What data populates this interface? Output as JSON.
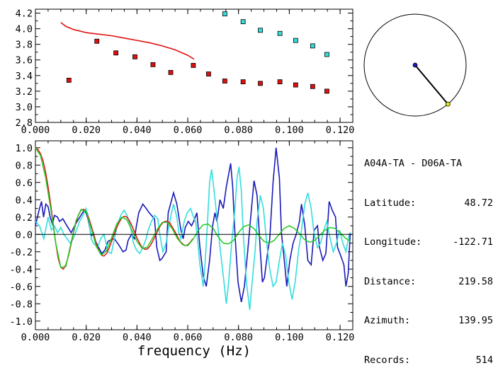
{
  "info": {
    "pair": "A04A-TA - D06A-TA",
    "rows": [
      {
        "label": "Latitude:",
        "value": "48.72"
      },
      {
        "label": "Longitude:",
        "value": "-122.71"
      },
      {
        "label": "Distance:",
        "value": "219.58"
      },
      {
        "label": "Azimuth:",
        "value": "139.95"
      },
      {
        "label": "Records:",
        "value": "514"
      }
    ]
  },
  "chart_data": [
    {
      "type": "scatter",
      "title": "",
      "xlabel": "",
      "ylabel": "",
      "xlim": [
        0.0,
        0.125
      ],
      "ylim": [
        2.8,
        4.25
      ],
      "x_ticks": [
        "0.000",
        "0.020",
        "0.040",
        "0.060",
        "0.080",
        "0.100",
        "0.120"
      ],
      "y_ticks": [
        "2.8",
        "3.0",
        "3.2",
        "3.4",
        "3.6",
        "3.8",
        "4.0",
        "4.2"
      ],
      "series": [
        {
          "color": "#e01010",
          "marker": "square",
          "x": [
            0.0132,
            0.0242,
            0.0317,
            0.0392,
            0.0463,
            0.0533,
            0.0622,
            0.0682,
            0.0746,
            0.0818,
            0.0886,
            0.0963,
            0.1025,
            0.1092,
            0.1148
          ],
          "y": [
            3.34,
            3.84,
            3.69,
            3.64,
            3.54,
            3.44,
            3.53,
            3.42,
            3.33,
            3.32,
            3.3,
            3.32,
            3.28,
            3.26,
            3.2
          ]
        },
        {
          "color": "#33dddd",
          "marker": "square",
          "x": [
            0.0746,
            0.0818,
            0.0886,
            0.0963,
            0.1025,
            0.1092,
            0.1148
          ],
          "y": [
            4.19,
            4.09,
            3.98,
            3.94,
            3.85,
            3.78,
            3.67
          ]
        },
        {
          "color": "#e01010",
          "marker": "line",
          "x": [
            0.01,
            0.012,
            0.015,
            0.02,
            0.025,
            0.03,
            0.035,
            0.04,
            0.045,
            0.05,
            0.055,
            0.06,
            0.0625
          ],
          "y": [
            4.08,
            4.03,
            3.99,
            3.95,
            3.93,
            3.91,
            3.88,
            3.85,
            3.82,
            3.78,
            3.73,
            3.66,
            3.61
          ]
        }
      ]
    },
    {
      "type": "line",
      "title": "",
      "xlabel": "frequency (Hz)",
      "ylabel": "",
      "xlim": [
        0.0,
        0.125
      ],
      "ylim": [
        -1.1,
        1.08
      ],
      "x_ticks": [
        "0.000",
        "0.020",
        "0.040",
        "0.060",
        "0.080",
        "0.100",
        "0.120"
      ],
      "y_ticks": [
        "-1.0",
        "-0.8",
        "-0.6",
        "-0.4",
        "-0.2",
        "0.0",
        "0.2",
        "0.4",
        "0.6",
        "0.8",
        "1.0"
      ],
      "series": [
        {
          "color": "#1a1ab8",
          "x": [
            0.0,
            0.0016,
            0.0024,
            0.0032,
            0.0041,
            0.005,
            0.0058,
            0.0067,
            0.0075,
            0.0087,
            0.0095,
            0.0108,
            0.0124,
            0.0141,
            0.0158,
            0.0175,
            0.019,
            0.0199,
            0.0207,
            0.022,
            0.0228,
            0.0237,
            0.0249,
            0.0261,
            0.0274,
            0.0286,
            0.0299,
            0.0311,
            0.0328,
            0.0345,
            0.0357,
            0.0365,
            0.0378,
            0.039,
            0.0398,
            0.0407,
            0.0423,
            0.0436,
            0.0448,
            0.0469,
            0.0478,
            0.049,
            0.0498,
            0.0515,
            0.0523,
            0.0544,
            0.0557,
            0.0565,
            0.0573,
            0.0582,
            0.059,
            0.0602,
            0.0615,
            0.0623,
            0.0636,
            0.0648,
            0.0661,
            0.0673,
            0.0686,
            0.0698,
            0.0707,
            0.0715,
            0.0727,
            0.074,
            0.0752,
            0.0769,
            0.0777,
            0.0786,
            0.0798,
            0.0811,
            0.0823,
            0.0836,
            0.0848,
            0.0861,
            0.0873,
            0.0886,
            0.0894,
            0.0902,
            0.0915,
            0.0923,
            0.0936,
            0.0948,
            0.0961,
            0.0969,
            0.0982,
            0.099,
            0.1002,
            0.1015,
            0.1027,
            0.104,
            0.1048,
            0.1061,
            0.1073,
            0.1086,
            0.1098,
            0.1111,
            0.1119,
            0.1132,
            0.1144,
            0.1157,
            0.1169,
            0.1182,
            0.119,
            0.1203,
            0.1215,
            0.1223,
            0.1232,
            0.124
          ],
          "y": [
            0.1,
            0.3,
            0.38,
            0.2,
            0.35,
            0.32,
            0.2,
            0.12,
            0.22,
            0.2,
            0.15,
            0.18,
            0.1,
            0.02,
            0.12,
            0.2,
            0.27,
            0.25,
            0.18,
            -0.02,
            0.02,
            -0.08,
            -0.15,
            -0.22,
            -0.18,
            -0.08,
            -0.06,
            -0.05,
            -0.12,
            -0.2,
            -0.18,
            -0.07,
            0.0,
            -0.05,
            0.1,
            0.25,
            0.35,
            0.3,
            0.25,
            0.18,
            -0.15,
            -0.3,
            -0.28,
            -0.2,
            0.25,
            0.48,
            0.35,
            0.2,
            0.05,
            -0.05,
            0.08,
            0.15,
            0.1,
            0.15,
            0.25,
            -0.15,
            -0.48,
            -0.6,
            -0.3,
            0.1,
            0.25,
            0.15,
            0.4,
            0.3,
            0.55,
            0.82,
            0.55,
            0.0,
            -0.55,
            -0.78,
            -0.6,
            -0.2,
            0.2,
            0.62,
            0.45,
            -0.2,
            -0.55,
            -0.5,
            -0.2,
            -0.05,
            0.6,
            1.0,
            0.65,
            0.02,
            -0.35,
            -0.6,
            -0.3,
            -0.1,
            0.0,
            0.15,
            0.35,
            0.1,
            -0.3,
            -0.35,
            0.05,
            0.1,
            -0.15,
            -0.3,
            -0.22,
            0.38,
            0.28,
            0.2,
            -0.15,
            -0.25,
            -0.35,
            -0.6,
            -0.45,
            0.02
          ]
        },
        {
          "color": "#33dddd",
          "x": [
            0.0,
            0.0016,
            0.0033,
            0.005,
            0.0063,
            0.0075,
            0.0087,
            0.01,
            0.0112,
            0.0125,
            0.0137,
            0.0149,
            0.0162,
            0.0174,
            0.0187,
            0.0199,
            0.0207,
            0.022,
            0.0228,
            0.0245,
            0.0257,
            0.027,
            0.0286,
            0.0299,
            0.0311,
            0.0324,
            0.0336,
            0.0349,
            0.0361,
            0.0374,
            0.0386,
            0.0398,
            0.0411,
            0.0423,
            0.0436,
            0.0444,
            0.0457,
            0.0469,
            0.0482,
            0.049,
            0.0502,
            0.0515,
            0.0523,
            0.0536,
            0.0544,
            0.0557,
            0.0565,
            0.0573,
            0.0586,
            0.0598,
            0.0611,
            0.0623,
            0.0631,
            0.064,
            0.0648,
            0.0661,
            0.0669,
            0.0677,
            0.0686,
            0.0694,
            0.0702,
            0.0715,
            0.0727,
            0.074,
            0.0752,
            0.0761,
            0.0773,
            0.0786,
            0.0794,
            0.0802,
            0.0811,
            0.0819,
            0.0831,
            0.0844,
            0.0852,
            0.0865,
            0.0873,
            0.0886,
            0.0898,
            0.0911,
            0.0923,
            0.0936,
            0.0948,
            0.0961,
            0.0973,
            0.0986,
            0.0998,
            0.1011,
            0.1023,
            0.1036,
            0.1048,
            0.1061,
            0.1073,
            0.1086,
            0.1098,
            0.1111,
            0.1123,
            0.1136,
            0.1148,
            0.1161,
            0.1173,
            0.1186,
            0.1198,
            0.1211,
            0.1223,
            0.1236,
            0.124
          ],
          "y": [
            0.15,
            0.1,
            -0.05,
            0.2,
            0.05,
            0.1,
            0.02,
            0.08,
            0.0,
            -0.05,
            -0.1,
            -0.05,
            0.05,
            0.15,
            0.22,
            0.3,
            0.22,
            -0.05,
            -0.1,
            -0.15,
            -0.05,
            0.0,
            -0.2,
            -0.22,
            -0.05,
            0.12,
            0.22,
            0.28,
            0.22,
            0.1,
            -0.1,
            -0.18,
            -0.22,
            -0.15,
            -0.05,
            0.05,
            0.15,
            0.22,
            0.18,
            0.0,
            -0.2,
            -0.1,
            0.05,
            0.25,
            0.35,
            0.2,
            0.02,
            -0.05,
            0.15,
            0.25,
            0.3,
            0.2,
            0.15,
            -0.1,
            -0.35,
            -0.6,
            -0.3,
            0.1,
            0.6,
            0.75,
            0.55,
            0.2,
            -0.15,
            -0.48,
            -0.8,
            -0.55,
            -0.1,
            0.3,
            0.65,
            0.78,
            0.5,
            0.0,
            -0.55,
            -0.87,
            -0.6,
            -0.2,
            0.15,
            0.45,
            0.3,
            -0.1,
            -0.4,
            -0.6,
            -0.55,
            -0.3,
            -0.1,
            -0.25,
            -0.55,
            -0.75,
            -0.55,
            -0.2,
            0.05,
            0.35,
            0.48,
            0.3,
            0.0,
            -0.15,
            -0.1,
            0.05,
            0.15,
            -0.05,
            -0.2,
            -0.1,
            0.05,
            -0.1,
            -0.2,
            0.0,
            0.02
          ]
        },
        {
          "color": "#e01010",
          "x": [
            0.0,
            0.001,
            0.002,
            0.003,
            0.004,
            0.005,
            0.006,
            0.007,
            0.008,
            0.009,
            0.01,
            0.011,
            0.012,
            0.013,
            0.014,
            0.015,
            0.016,
            0.017,
            0.018,
            0.019,
            0.02,
            0.021,
            0.022,
            0.023,
            0.024,
            0.025,
            0.026,
            0.027,
            0.028,
            0.029,
            0.03,
            0.031,
            0.032,
            0.033,
            0.034,
            0.035,
            0.036,
            0.037,
            0.038,
            0.039,
            0.04,
            0.041,
            0.042,
            0.043,
            0.044,
            0.045,
            0.046,
            0.047,
            0.048,
            0.049,
            0.05,
            0.051,
            0.052,
            0.053,
            0.054,
            0.055,
            0.056,
            0.057,
            0.058,
            0.059,
            0.06,
            0.061,
            0.062
          ],
          "y": [
            1.0,
            0.98,
            0.93,
            0.85,
            0.72,
            0.55,
            0.35,
            0.12,
            -0.1,
            -0.28,
            -0.38,
            -0.4,
            -0.35,
            -0.25,
            -0.12,
            0.02,
            0.14,
            0.23,
            0.28,
            0.29,
            0.26,
            0.19,
            0.1,
            -0.01,
            -0.11,
            -0.19,
            -0.24,
            -0.25,
            -0.22,
            -0.16,
            -0.08,
            0.0,
            0.08,
            0.14,
            0.19,
            0.21,
            0.2,
            0.16,
            0.1,
            0.03,
            -0.04,
            -0.1,
            -0.15,
            -0.17,
            -0.17,
            -0.14,
            -0.09,
            -0.03,
            0.03,
            0.09,
            0.13,
            0.15,
            0.15,
            0.13,
            0.08,
            0.03,
            -0.03,
            -0.08,
            -0.11,
            -0.13,
            -0.12,
            -0.09,
            -0.05
          ]
        },
        {
          "color": "#22cc22",
          "x": [
            0.0,
            0.002,
            0.004,
            0.006,
            0.008,
            0.01,
            0.012,
            0.014,
            0.016,
            0.018,
            0.02,
            0.022,
            0.024,
            0.026,
            0.028,
            0.03,
            0.032,
            0.034,
            0.036,
            0.038,
            0.04,
            0.042,
            0.044,
            0.046,
            0.048,
            0.05,
            0.052,
            0.054,
            0.056,
            0.058,
            0.06,
            0.062,
            0.064,
            0.066,
            0.068,
            0.07,
            0.072,
            0.074,
            0.076,
            0.078,
            0.08,
            0.082,
            0.084,
            0.086,
            0.088,
            0.09,
            0.092,
            0.094,
            0.096,
            0.098,
            0.1,
            0.102,
            0.104,
            0.106,
            0.108,
            0.11,
            0.112,
            0.114,
            0.116,
            0.118,
            0.12,
            0.122,
            0.124
          ],
          "y": [
            1.0,
            0.91,
            0.66,
            0.3,
            -0.1,
            -0.38,
            -0.37,
            -0.1,
            0.16,
            0.29,
            0.26,
            0.07,
            -0.14,
            -0.24,
            -0.19,
            -0.04,
            0.12,
            0.2,
            0.17,
            0.05,
            -0.08,
            -0.16,
            -0.15,
            -0.05,
            0.06,
            0.14,
            0.14,
            0.06,
            -0.05,
            -0.12,
            -0.13,
            -0.06,
            0.04,
            0.11,
            0.12,
            0.07,
            -0.03,
            -0.1,
            -0.11,
            -0.07,
            0.02,
            0.09,
            0.11,
            0.07,
            -0.01,
            -0.08,
            -0.1,
            -0.07,
            0.0,
            0.07,
            0.1,
            0.07,
            0.01,
            -0.06,
            -0.09,
            -0.07,
            -0.01,
            0.05,
            0.08,
            0.07,
            0.02,
            -0.04,
            -0.08
          ]
        },
        {
          "color": "#000000",
          "x": [
            0.0,
            0.125
          ],
          "y": [
            0.0,
            0.0
          ]
        }
      ]
    },
    {
      "type": "diagram",
      "title": "",
      "azimuth_deg": 139.95
    }
  ]
}
